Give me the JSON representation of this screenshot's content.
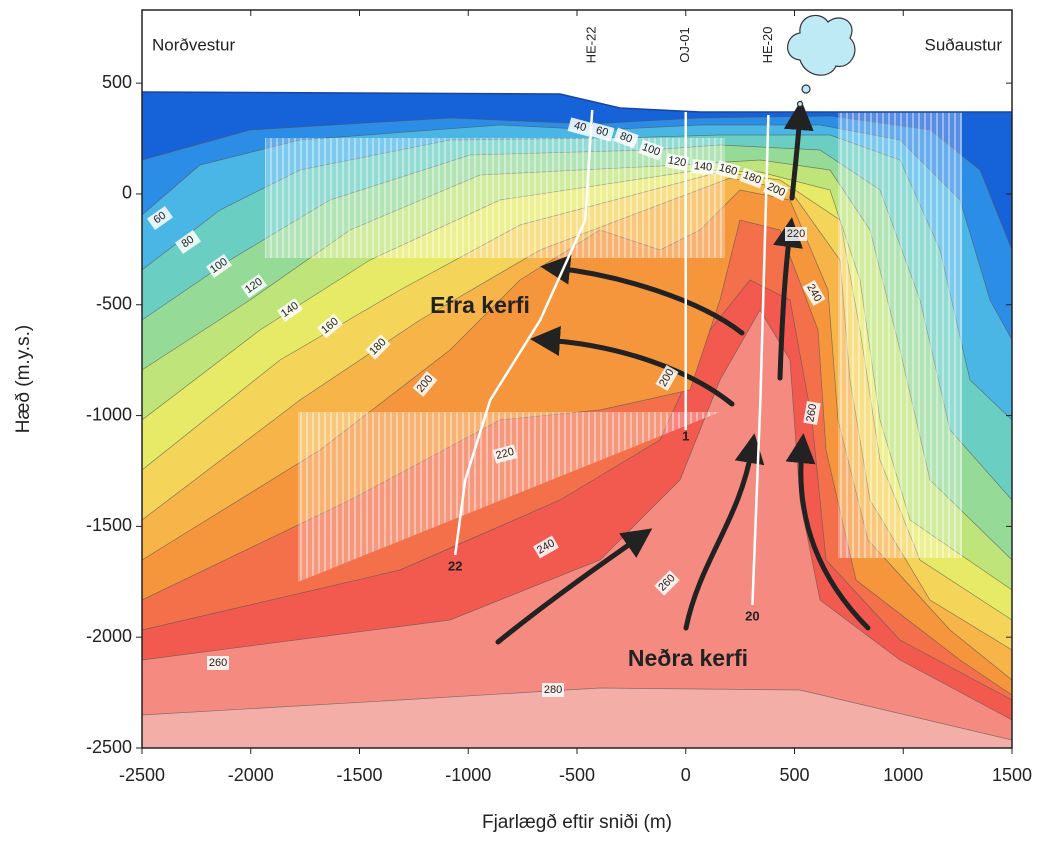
{
  "chart_data": {
    "type": "cross-section",
    "xlabel": "Fjarlægð eftir sniði (m)",
    "ylabel": "Hæð (m.y.s.)",
    "xlim": [
      -2500,
      1500
    ],
    "ylim": [
      -2500,
      830
    ],
    "xticks": [
      -2500,
      -2000,
      -1500,
      -1000,
      -500,
      0,
      500,
      1000,
      1500
    ],
    "yticks": [
      -2500,
      -2000,
      -1500,
      -1000,
      -500,
      0,
      500
    ],
    "corner_labels": [
      "Norðvestur",
      "Suðaustur"
    ],
    "region_labels": [
      "Efra kerfi",
      "Neðra kerfi"
    ],
    "wells": [
      {
        "name": "HE-22",
        "x": -430,
        "bottom_label": "22"
      },
      {
        "name": "OJ-01",
        "x": 0,
        "bottom_label": "1"
      },
      {
        "name": "HE-20",
        "x": 380,
        "bottom_label": "20"
      }
    ],
    "contour_labels": [
      40,
      60,
      80,
      100,
      120,
      140,
      160,
      180,
      200,
      220,
      240,
      260,
      60,
      80,
      100,
      120,
      140,
      160,
      180,
      200,
      200,
      220,
      240,
      260,
      260,
      280
    ]
  }
}
